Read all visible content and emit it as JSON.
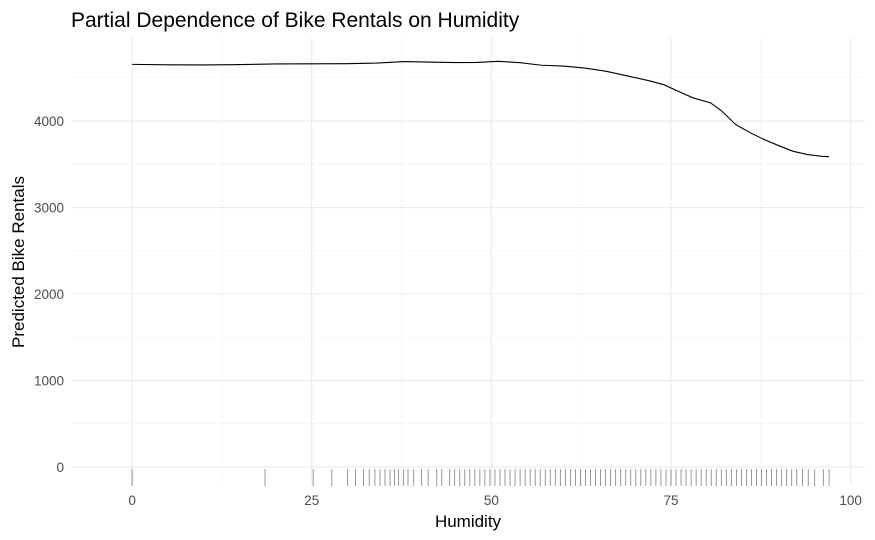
{
  "chart_data": {
    "type": "line",
    "title": "Partial Dependence of Bike Rentals on Humidity",
    "xlabel": "Humidity",
    "ylabel": "Predicted Bike Rentals",
    "xlim": [
      -8.5,
      102
    ],
    "ylim": [
      -220,
      4960
    ],
    "x_ticks": [
      0,
      25,
      50,
      75,
      100
    ],
    "y_ticks": [
      0,
      1000,
      2000,
      3000,
      4000
    ],
    "grid": true,
    "series": [
      {
        "x": [
          0,
          5,
          10,
          14,
          20,
          25,
          30,
          34,
          38,
          42,
          45,
          48,
          51,
          54,
          57,
          60,
          63,
          66,
          69,
          72,
          74,
          76,
          78,
          80.5,
          82,
          84,
          86,
          88,
          90,
          92,
          94,
          96,
          97
        ],
        "values": [
          4655,
          4650,
          4648,
          4652,
          4660,
          4662,
          4663,
          4670,
          4688,
          4680,
          4676,
          4678,
          4690,
          4675,
          4645,
          4635,
          4612,
          4575,
          4520,
          4465,
          4420,
          4345,
          4270,
          4210,
          4120,
          3960,
          3865,
          3785,
          3715,
          3650,
          3612,
          3592,
          3588
        ]
      }
    ],
    "rug_x": [
      0,
      18.5,
      25.2,
      27.8,
      30,
      31.1,
      32.2,
      33,
      33.8,
      34.5,
      35.2,
      35.9,
      36.5,
      37.1,
      37.8,
      38.4,
      39.2,
      40.3,
      41.2,
      42.4,
      43.1,
      44.2,
      44.9,
      45.6,
      46.3,
      47,
      47.7,
      48.4,
      49.1,
      49.8,
      50.5,
      51.2,
      51.9,
      52.6,
      53.3,
      54,
      54.7,
      55.4,
      56.1,
      56.8,
      57.5,
      58.2,
      58.9,
      59.6,
      60.3,
      61,
      61.7,
      62.4,
      63.1,
      63.8,
      64.5,
      65.2,
      65.9,
      66.6,
      67.3,
      68,
      68.7,
      69.4,
      70.1,
      70.8,
      71.5,
      72.2,
      72.9,
      73.6,
      74.3,
      75,
      75.7,
      76.4,
      77.1,
      77.8,
      78.5,
      79.2,
      79.9,
      80.6,
      81.3,
      82,
      82.7,
      83.4,
      84.1,
      84.8,
      85.5,
      86.2,
      86.9,
      87.6,
      88.3,
      89,
      89.7,
      90.4,
      91.1,
      91.8,
      92.5,
      93.3,
      94.1,
      95,
      96.2,
      97
    ]
  }
}
